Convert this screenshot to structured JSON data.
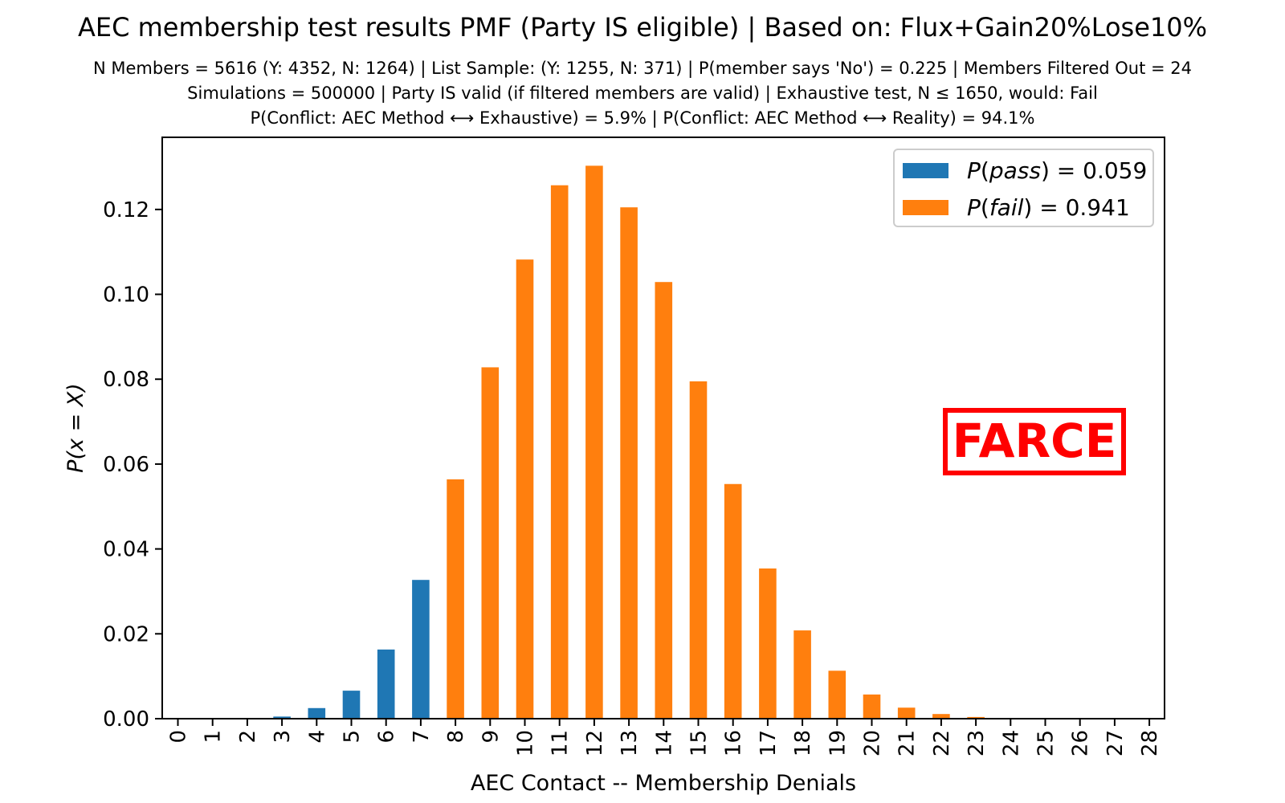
{
  "chart_data": {
    "type": "bar",
    "title": "AEC membership test results PMF (Party IS eligible) | Based on: Flux+Gain20%Lose10%",
    "subtitle": [
      "N Members = 5616 (Y: 4352, N: 1264) | List Sample: (Y: 1255, N: 371) | P(member says 'No') = 0.225 | Members Filtered Out = 24",
      "Simulations = 500000 | Party IS valid (if filtered members are valid) | Exhaustive test, N ≤ 1650, would: Fail",
      "P(Conflict: AEC Method ⟷ Exhaustive) = 5.9% | P(Conflict: AEC Method ⟷ Reality) = 94.1%"
    ],
    "xlabel": "AEC Contact -- Membership Denials",
    "ylabel": "P(x = X)",
    "categories": [
      "0",
      "1",
      "2",
      "3",
      "4",
      "5",
      "6",
      "7",
      "8",
      "9",
      "10",
      "11",
      "12",
      "13",
      "14",
      "15",
      "16",
      "17",
      "18",
      "19",
      "20",
      "21",
      "22",
      "23",
      "24",
      "25",
      "26",
      "27",
      "28"
    ],
    "values": [
      0.0,
      0.0,
      0.0001,
      0.0005,
      0.0025,
      0.0066,
      0.0163,
      0.0327,
      0.0564,
      0.0828,
      0.1082,
      0.1257,
      0.1303,
      0.1205,
      0.1029,
      0.0795,
      0.0553,
      0.0354,
      0.0208,
      0.0113,
      0.0057,
      0.0026,
      0.0011,
      0.0004,
      0.0001,
      0.0,
      0.0,
      0.0,
      0.0
    ],
    "pass_max_category": 7,
    "ylim": [
      0,
      0.137
    ],
    "yticks": [
      "0.00",
      "0.02",
      "0.04",
      "0.06",
      "0.08",
      "0.10",
      "0.12"
    ],
    "legend": {
      "position": "top-right",
      "entries": [
        {
          "label": "P(pass) = 0.059",
          "var": "pass",
          "value": "0.059",
          "color": "#1f77b4"
        },
        {
          "label": "P(fail) = 0.941",
          "var": "fail",
          "value": "0.941",
          "color": "#ff7f0e"
        }
      ]
    },
    "annotation": {
      "text": "FARCE",
      "color": "#ff0000"
    },
    "colors": {
      "pass": "#1f77b4",
      "fail": "#ff7f0e"
    }
  }
}
